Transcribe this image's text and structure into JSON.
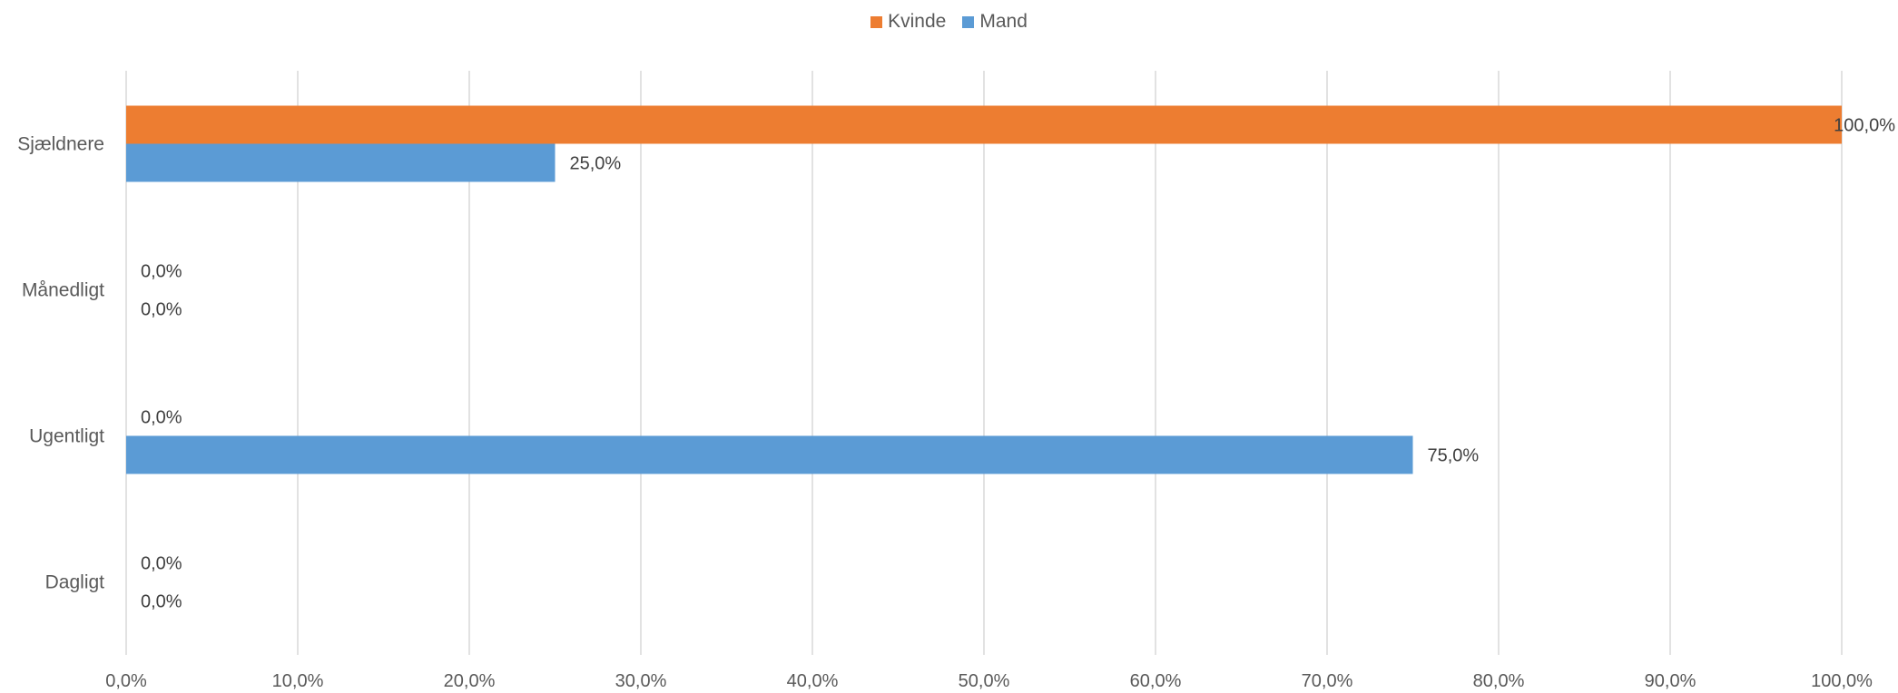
{
  "chart_data": {
    "type": "bar",
    "orientation": "horizontal",
    "title": "",
    "xlabel": "",
    "ylabel": "",
    "categories": [
      "Sjældnere",
      "Månedligt",
      "Ugentligt",
      "Dagligt"
    ],
    "series": [
      {
        "name": "Kvinde",
        "color": "#ED7D31",
        "values": [
          100.0,
          0.0,
          0.0,
          0.0
        ],
        "labels": [
          "100,0%",
          "0,0%",
          "0,0%",
          "0,0%"
        ]
      },
      {
        "name": "Mand",
        "color": "#5B9BD5",
        "values": [
          25.0,
          0.0,
          75.0,
          0.0
        ],
        "labels": [
          "25,0%",
          "0,0%",
          "75,0%",
          "0,0%"
        ]
      }
    ],
    "xlim": [
      0,
      100
    ],
    "x_ticks": [
      "0,0%",
      "10,0%",
      "20,0%",
      "30,0%",
      "40,0%",
      "50,0%",
      "60,0%",
      "70,0%",
      "80,0%",
      "90,0%",
      "100,0%"
    ],
    "grid": true,
    "legend_position": "top"
  }
}
